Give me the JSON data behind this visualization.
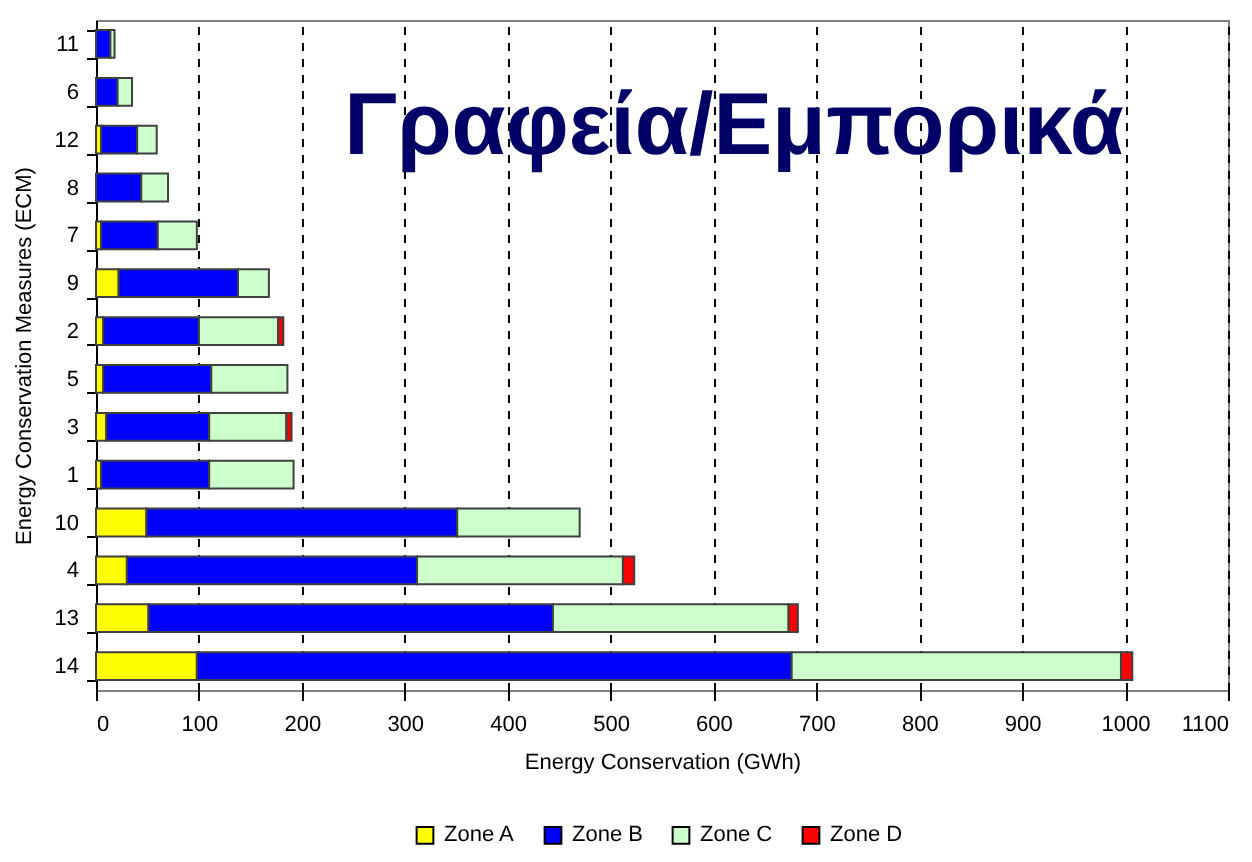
{
  "chart_data": {
    "type": "bar",
    "title": "Γραφεία/Εμπορικά",
    "xlabel": "Energy Conservation (GWh)",
    "ylabel": "Energy Conservation Measures (ECM)",
    "categories": [
      "11",
      "6",
      "12",
      "8",
      "7",
      "9",
      "2",
      "5",
      "3",
      "1",
      "10",
      "4",
      "13",
      "14"
    ],
    "orientation": "horizontal",
    "stacked": true,
    "series": [
      {
        "name": "Zone A",
        "color": "#ffff00",
        "values": [
          null,
          null,
          5,
          null,
          5,
          22,
          7,
          7,
          10,
          5,
          49,
          30,
          51,
          98
        ]
      },
      {
        "name": "Zone B",
        "color": "#0000ff",
        "values": [
          14,
          21,
          35,
          44,
          55,
          116,
          93,
          105,
          100,
          105,
          302,
          282,
          393,
          578
        ]
      },
      {
        "name": "Zone C",
        "color": "#ccffcc",
        "values": [
          4,
          14,
          19,
          26,
          38,
          30,
          77,
          74,
          75,
          82,
          119,
          200,
          229,
          320
        ]
      },
      {
        "name": "Zone D",
        "color": "#ff0000",
        "values": [
          null,
          null,
          null,
          null,
          null,
          null,
          5,
          null,
          5,
          null,
          null,
          11,
          9,
          11
        ]
      }
    ],
    "xlim": [
      0,
      1100
    ],
    "xticks": [
      0,
      100,
      200,
      300,
      400,
      500,
      600,
      700,
      800,
      900,
      1000,
      1100
    ],
    "grid": "x",
    "legend": "bottom"
  }
}
